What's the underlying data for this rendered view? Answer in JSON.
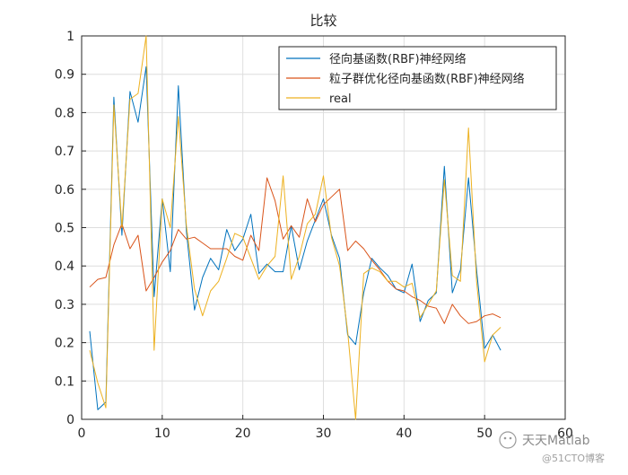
{
  "chart_data": {
    "type": "line",
    "title": "比较",
    "xlabel": "",
    "ylabel": "",
    "xlim": [
      0,
      60
    ],
    "ylim": [
      0,
      1
    ],
    "xticks": [
      0,
      10,
      20,
      30,
      40,
      50,
      60
    ],
    "yticks": [
      0,
      0.1,
      0.2,
      0.3,
      0.4,
      0.5,
      0.6,
      0.7,
      0.8,
      0.9,
      1
    ],
    "grid": true,
    "legend_position": "top-right",
    "x": [
      1,
      2,
      3,
      4,
      5,
      6,
      7,
      8,
      9,
      10,
      11,
      12,
      13,
      14,
      15,
      16,
      17,
      18,
      19,
      20,
      21,
      22,
      23,
      24,
      25,
      26,
      27,
      28,
      29,
      30,
      31,
      32,
      33,
      34,
      35,
      36,
      37,
      38,
      39,
      40,
      41,
      42,
      43,
      44,
      45,
      46,
      47,
      48,
      49,
      50,
      51,
      52
    ],
    "series": [
      {
        "name": "径向基函数(RBF)神经网络",
        "color": "#0072BD",
        "values": [
          0.23,
          0.025,
          0.045,
          0.84,
          0.48,
          0.855,
          0.775,
          0.92,
          0.32,
          0.575,
          0.385,
          0.87,
          0.49,
          0.285,
          0.37,
          0.42,
          0.39,
          0.495,
          0.44,
          0.47,
          0.535,
          0.38,
          0.405,
          0.385,
          0.385,
          0.505,
          0.39,
          0.465,
          0.52,
          0.575,
          0.48,
          0.42,
          0.22,
          0.195,
          0.33,
          0.42,
          0.395,
          0.375,
          0.34,
          0.33,
          0.405,
          0.255,
          0.31,
          0.33,
          0.66,
          0.33,
          0.39,
          0.63,
          0.39,
          0.185,
          0.22,
          0.18
        ]
      },
      {
        "name": "粒子群优化径向基函数(RBF)神经网络",
        "color": "#D95319",
        "values": [
          0.345,
          0.365,
          0.37,
          0.455,
          0.51,
          0.445,
          0.48,
          0.335,
          0.37,
          0.41,
          0.44,
          0.495,
          0.47,
          0.475,
          0.46,
          0.445,
          0.445,
          0.445,
          0.425,
          0.415,
          0.48,
          0.44,
          0.63,
          0.57,
          0.47,
          0.505,
          0.475,
          0.575,
          0.515,
          0.56,
          0.58,
          0.6,
          0.44,
          0.465,
          0.445,
          0.415,
          0.39,
          0.36,
          0.34,
          0.335,
          0.32,
          0.31,
          0.295,
          0.29,
          0.25,
          0.3,
          0.27,
          0.25,
          0.255,
          0.27,
          0.275,
          0.265
        ]
      },
      {
        "name": "real",
        "color": "#EDB120",
        "values": [
          0.18,
          0.095,
          0.03,
          0.82,
          0.5,
          0.835,
          0.85,
          1.0,
          0.18,
          0.575,
          0.5,
          0.79,
          0.505,
          0.34,
          0.27,
          0.335,
          0.36,
          0.42,
          0.485,
          0.475,
          0.42,
          0.365,
          0.4,
          0.425,
          0.635,
          0.365,
          0.425,
          0.51,
          0.535,
          0.635,
          0.475,
          0.4,
          0.23,
          0.0,
          0.38,
          0.395,
          0.385,
          0.36,
          0.36,
          0.345,
          0.355,
          0.265,
          0.3,
          0.335,
          0.625,
          0.375,
          0.36,
          0.76,
          0.36,
          0.15,
          0.22,
          0.24
        ]
      }
    ]
  },
  "watermark": {
    "account": "天天Matlab",
    "site": "@51CTO博客"
  }
}
